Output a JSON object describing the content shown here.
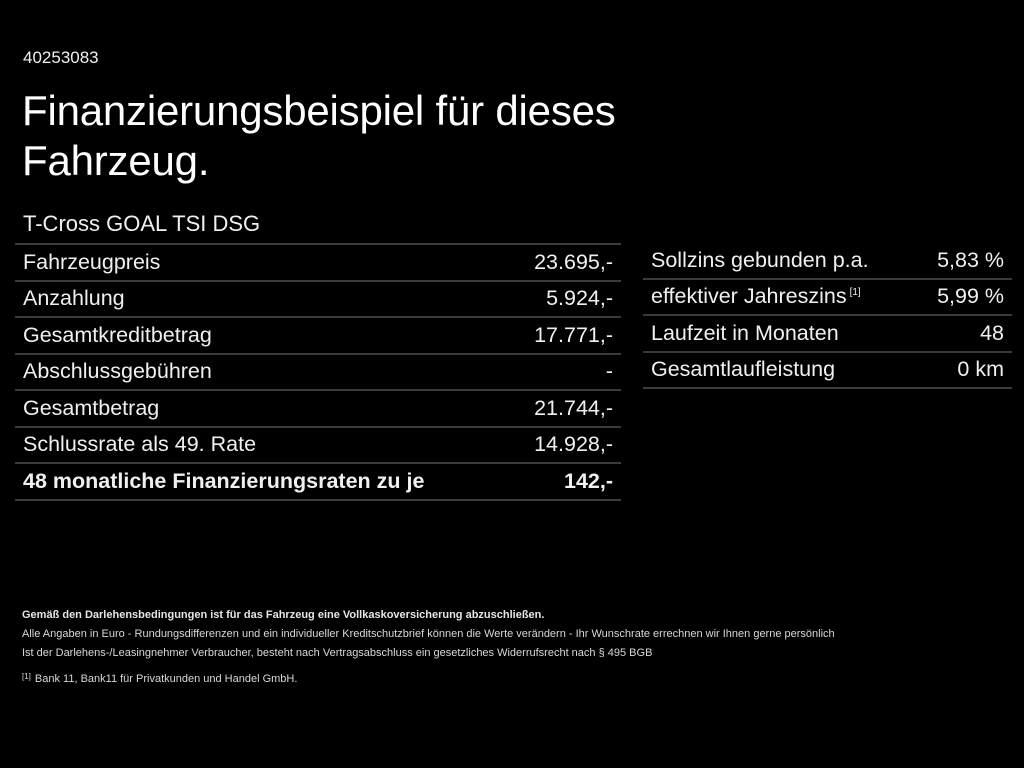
{
  "header": {
    "ref_id": "40253083",
    "title": "Finanzierungsbeispiel für dieses Fahrzeug.",
    "model": "T-Cross GOAL TSI DSG"
  },
  "left_table": {
    "rows": [
      {
        "label": "Fahrzeugpreis",
        "value": "23.695,-"
      },
      {
        "label": "Anzahlung",
        "value": "5.924,-"
      },
      {
        "label": "Gesamtkreditbetrag",
        "value": "17.771,-"
      },
      {
        "label": "Abschlussgebühren",
        "value": "-"
      },
      {
        "label": "Gesamtbetrag",
        "value": "21.744,-"
      },
      {
        "label": "Schlussrate als 49. Rate",
        "value": "14.928,-"
      },
      {
        "label": "48 monatliche Finanzierungsraten zu je",
        "value": "142,-"
      }
    ]
  },
  "right_table": {
    "rows": [
      {
        "label": "Sollzins gebunden p.a.",
        "value": "5,83 %"
      },
      {
        "label": "effektiver Jahreszins",
        "footnote": "[1]",
        "value": "5,99 %"
      },
      {
        "label": "Laufzeit in Monaten",
        "value": "48"
      },
      {
        "label": "Gesamtlaufleistung",
        "value": "0 km"
      }
    ]
  },
  "footer": {
    "insurance_note": "Gemäß den Darlehensbedingungen ist für das Fahrzeug eine Vollkaskoversicherung abzuschließen.",
    "line1": "Alle Angaben in Euro - Rundungsdifferenzen und ein individueller Kreditschutzbrief können die Werte verändern - Ihr Wunschrate errechnen wir Ihnen gerne persönlich",
    "line2": "Ist der Darlehens-/Leasingnehmer Verbraucher, besteht nach Vertragsabschluss ein gesetzliches Widerrufsrecht nach § 495 BGB",
    "footnote_marker": "[1]",
    "footnote_text": "Bank 11, Bank11 für Privatkunden und Handel GmbH."
  }
}
